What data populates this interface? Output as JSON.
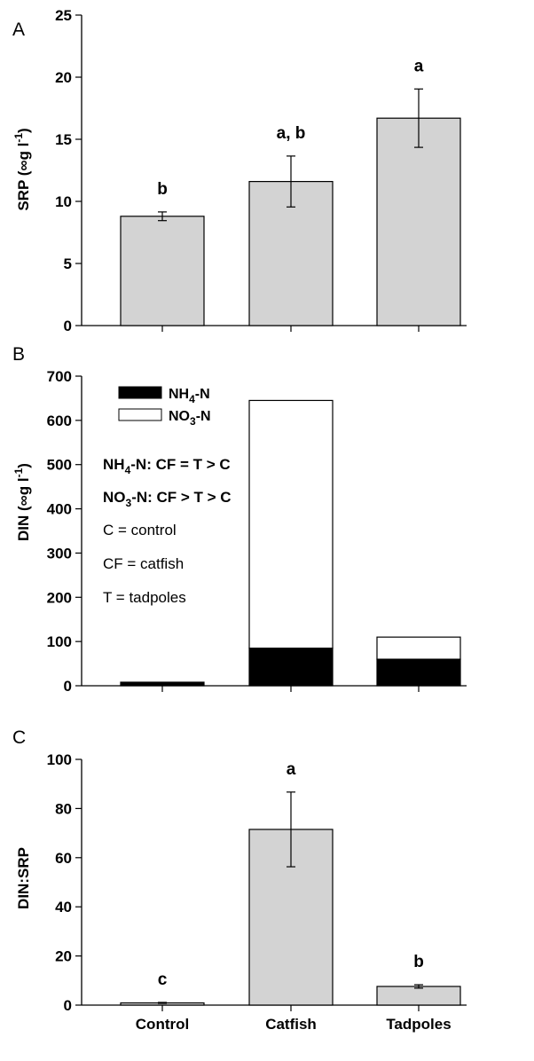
{
  "chart_data": [
    {
      "type": "bar",
      "panel_letter": "A",
      "ylabel": "SRP (∞g l⁻¹)",
      "ylim": [
        0,
        25
      ],
      "yticks": [
        "0",
        "5",
        "10",
        "15",
        "20",
        "25"
      ],
      "categories": [
        "Control",
        "Catfish",
        "Tadpoles"
      ],
      "values": [
        8.8,
        11.6,
        16.7
      ],
      "error": [
        0.35,
        2.05,
        2.35
      ],
      "significance": [
        "b",
        "a, b",
        "a"
      ],
      "colors": {
        "bar": "#d3d3d3"
      }
    },
    {
      "type": "bar",
      "stacked": true,
      "panel_letter": "B",
      "ylabel": "DIN (∞g l⁻¹)",
      "ylim": [
        0,
        700
      ],
      "yticks": [
        "0",
        "100",
        "200",
        "300",
        "400",
        "500",
        "600",
        "700"
      ],
      "categories": [
        "Control",
        "Catfish",
        "Tadpoles"
      ],
      "series": [
        {
          "name": "NH4-N",
          "values": [
            8,
            85,
            60
          ],
          "color": "#000000"
        },
        {
          "name": "NO3-N",
          "values": [
            0,
            560,
            50
          ],
          "color": "#ffffff"
        }
      ],
      "legend": [
        {
          "base": "NH",
          "sub": "4",
          "rest": "-N"
        },
        {
          "base": "NO",
          "sub": "3",
          "rest": "-N"
        }
      ],
      "legend_position": "top-left",
      "annotations": {
        "nh4": {
          "base": "NH",
          "sub": "4",
          "rest": "-N: CF = T > C"
        },
        "no3": {
          "base": "NO",
          "sub": "3",
          "rest": "-N: CF > T > C"
        },
        "key_c": "C = control",
        "key_cf": "CF = catfish",
        "key_t": "T = tadpoles"
      }
    },
    {
      "type": "bar",
      "panel_letter": "C",
      "ylabel": "DIN:SRP",
      "ylim": [
        0,
        100
      ],
      "yticks": [
        "0",
        "20",
        "40",
        "60",
        "80",
        "100"
      ],
      "categories": [
        "Control",
        "Catfish",
        "Tadpoles"
      ],
      "values": [
        0.9,
        71.5,
        7.6
      ],
      "error": [
        0.2,
        15.2,
        0.7
      ],
      "significance": [
        "c",
        "a",
        "b"
      ],
      "colors": {
        "bar": "#d3d3d3"
      }
    }
  ]
}
